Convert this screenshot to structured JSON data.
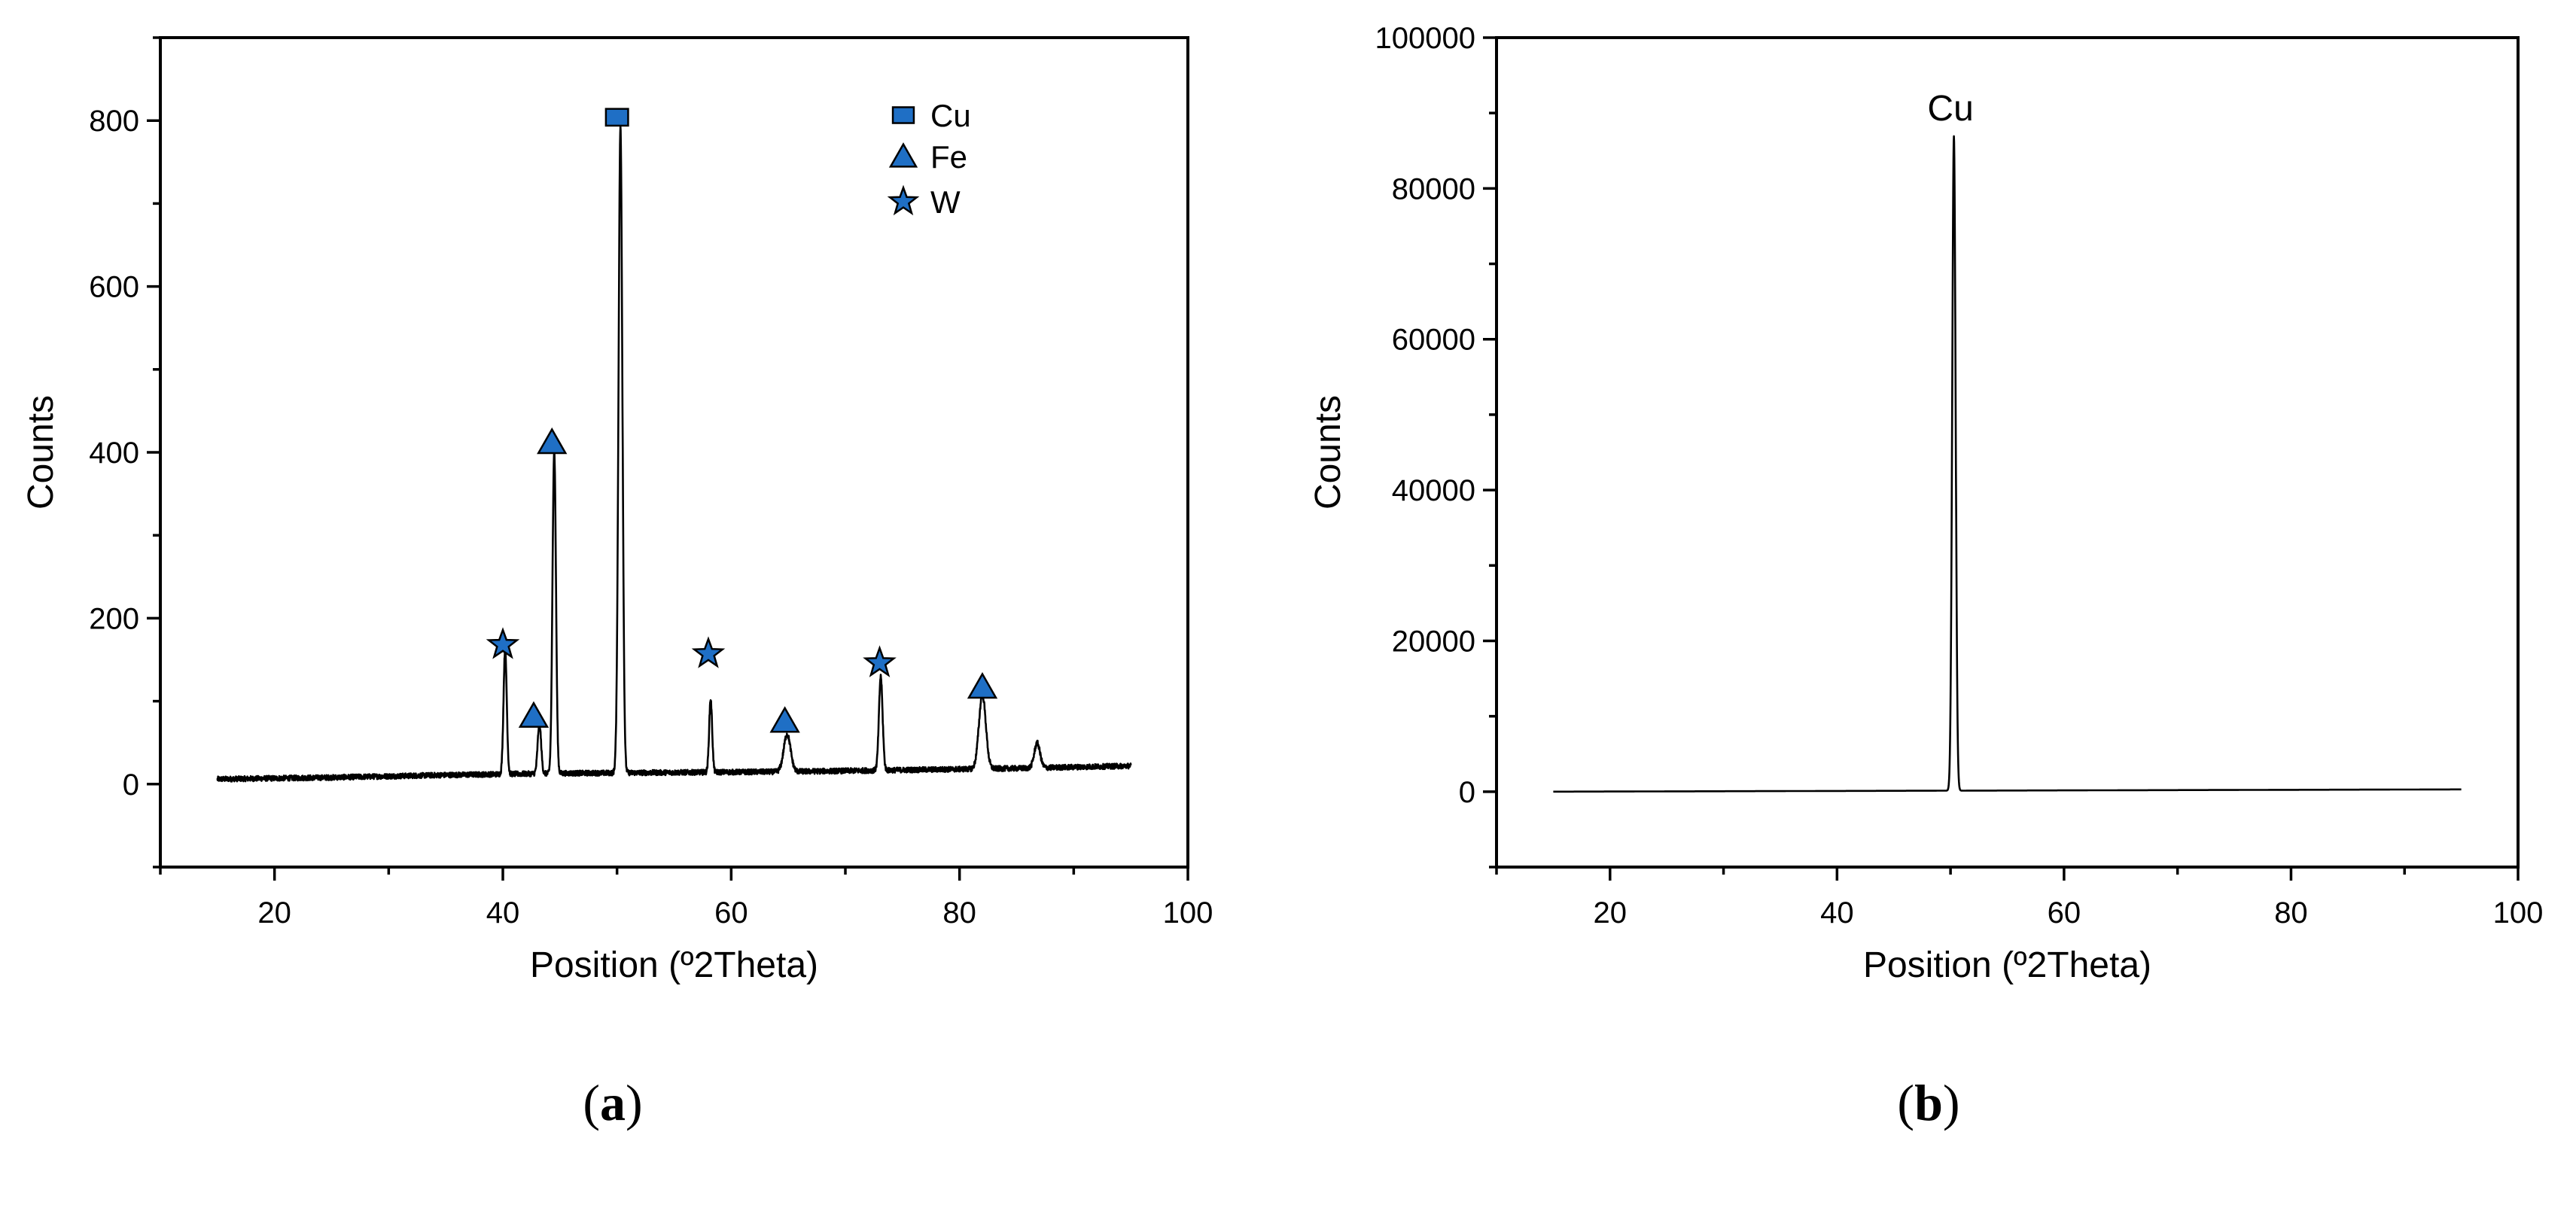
{
  "chart_data": [
    {
      "type": "line",
      "panel_label": "(a)",
      "xlabel": "Position (º2Theta)",
      "ylabel": "Counts",
      "xlim": [
        10,
        100
      ],
      "ylim": [
        -100,
        900
      ],
      "x_ticks": [
        20,
        40,
        60,
        80,
        100
      ],
      "y_ticks": [
        0,
        200,
        400,
        600,
        800
      ],
      "x_minor_step": 10,
      "y_minor_step": 100,
      "grid": false,
      "legend_position": "top-right",
      "legend": [
        {
          "label": "Cu",
          "marker": "square"
        },
        {
          "label": "Fe",
          "marker": "triangle"
        },
        {
          "label": "W",
          "marker": "star"
        }
      ],
      "marker_color": "#1f6fc5",
      "line_color": "#000000",
      "x_range": [
        15,
        95
      ],
      "baseline": [
        {
          "x": 15,
          "y": 6
        },
        {
          "x": 25,
          "y": 8
        },
        {
          "x": 35,
          "y": 11
        },
        {
          "x": 45,
          "y": 13
        },
        {
          "x": 55,
          "y": 14
        },
        {
          "x": 65,
          "y": 15
        },
        {
          "x": 75,
          "y": 17
        },
        {
          "x": 85,
          "y": 19
        },
        {
          "x": 95,
          "y": 22
        }
      ],
      "peaks": [
        {
          "x": 40.2,
          "y": 150,
          "width": 0.14
        },
        {
          "x": 43.2,
          "y": 60,
          "width": 0.15
        },
        {
          "x": 44.5,
          "y": 388,
          "width": 0.15
        },
        {
          "x": 50.3,
          "y": 778,
          "width": 0.17
        },
        {
          "x": 58.2,
          "y": 88,
          "width": 0.13
        },
        {
          "x": 64.9,
          "y": 45,
          "width": 0.3
        },
        {
          "x": 73.1,
          "y": 113,
          "width": 0.16
        },
        {
          "x": 82.0,
          "y": 90,
          "width": 0.3
        },
        {
          "x": 86.8,
          "y": 30,
          "width": 0.25
        }
      ],
      "markers": [
        {
          "phase": "W",
          "shape": "star",
          "x": 40.0,
          "y": 168
        },
        {
          "phase": "Fe",
          "shape": "triangle",
          "x": 42.7,
          "y": 82
        },
        {
          "phase": "Fe",
          "shape": "triangle",
          "x": 44.3,
          "y": 412
        },
        {
          "phase": "Cu",
          "shape": "square",
          "x": 50.0,
          "y": 804
        },
        {
          "phase": "W",
          "shape": "star",
          "x": 58.0,
          "y": 157
        },
        {
          "phase": "Fe",
          "shape": "triangle",
          "x": 64.7,
          "y": 76
        },
        {
          "phase": "W",
          "shape": "star",
          "x": 73.0,
          "y": 146
        },
        {
          "phase": "Fe",
          "shape": "triangle",
          "x": 82.0,
          "y": 117
        }
      ]
    },
    {
      "type": "line",
      "panel_label": "(b)",
      "xlabel": "Position (º2Theta)",
      "ylabel": "Counts",
      "xlim": [
        10,
        100
      ],
      "ylim": [
        -10000,
        100000
      ],
      "x_ticks": [
        20,
        40,
        60,
        80,
        100
      ],
      "y_ticks": [
        0,
        20000,
        40000,
        60000,
        80000,
        100000
      ],
      "x_minor_step": 10,
      "y_minor_step": 10000,
      "grid": false,
      "line_color": "#000000",
      "x_range": [
        15,
        95
      ],
      "baseline": [
        {
          "x": 15,
          "y": 0
        },
        {
          "x": 95,
          "y": 300
        }
      ],
      "peaks": [
        {
          "x": 50.3,
          "y": 86800,
          "width": 0.15
        }
      ],
      "annotations": [
        {
          "text": "Cu",
          "x": 50.0,
          "y": 89000
        }
      ]
    }
  ]
}
